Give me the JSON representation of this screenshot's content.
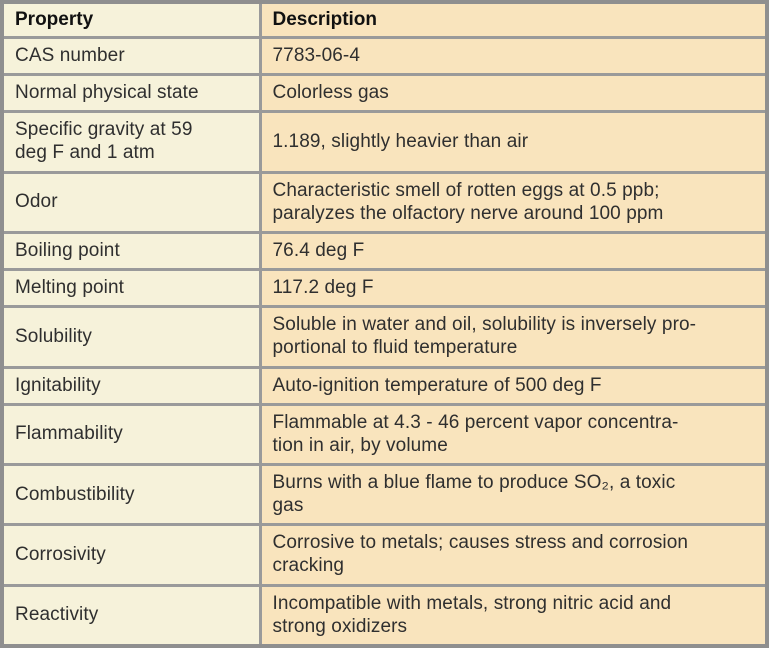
{
  "table": {
    "name": "chemical-properties-table",
    "columns": [
      {
        "label": "Property"
      },
      {
        "label": "Description"
      }
    ],
    "rows": [
      {
        "property": "CAS number",
        "description": "7783-06-4"
      },
      {
        "property": "Normal physical state",
        "description": "Colorless gas"
      },
      {
        "property": "Specific gravity at 59\ndeg F and 1 atm",
        "description": "1.189, slightly heavier than air"
      },
      {
        "property": "Odor",
        "description": "Characteristic smell of rotten eggs at 0.5 ppb;\nparalyzes the olfactory nerve around 100 ppm"
      },
      {
        "property": "Boiling point",
        "description": "76.4 deg F"
      },
      {
        "property": "Melting point",
        "description": "117.2 deg F"
      },
      {
        "property": "Solubility",
        "description": "Soluble in water and oil, solubility is inversely pro-\nportional to fluid temperature"
      },
      {
        "property": "Ignitability",
        "description": "Auto-ignition temperature of 500 deg F"
      },
      {
        "property": "Flammability",
        "description": "Flammable at 4.3 - 46 percent vapor concentra-\ntion in air, by volume"
      },
      {
        "property": "Combustibility",
        "description": "Burns with a blue flame to produce SO₂, a toxic\ngas"
      },
      {
        "property": "Corrosivity",
        "description": "Corrosive to metals; causes stress and corrosion\ncracking"
      },
      {
        "property": "Reactivity",
        "description": "Incompatible with metals, strong nitric acid and\nstrong oxidizers"
      }
    ],
    "colors": {
      "property_column_bg": "#f6f2da",
      "description_column_bg": "#f9e4bd",
      "grid_border": "#9a9a9a",
      "outer_border": "#8f8f8f",
      "body_text": "#2f2f2f",
      "header_text": "#111111"
    }
  }
}
